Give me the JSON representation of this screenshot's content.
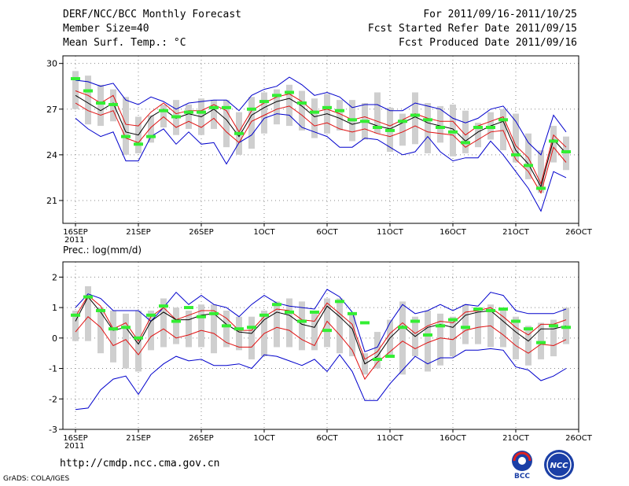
{
  "header": {
    "title": "DERF/NCC/BCC Monthly Forecast",
    "member_size": "Member Size=40",
    "variable": "Mean Surf. Temp.: °C",
    "period": "For 2011/09/16-2011/10/25",
    "refer_date": "Fcst Started Refer Date 2011/09/15",
    "produced_date": "Fcst Produced Date 2011/09/16"
  },
  "footer": {
    "url": "http://cmdp.ncc.cma.gov.cn",
    "credit": "GrADS: COLA/IGES",
    "logo_left": "BCC",
    "logo_right": "NCC"
  },
  "colors": {
    "box": "#cfcfcf",
    "median": "#000000",
    "inner_band": "#e01010",
    "outer_band": "#0000cc",
    "point": "#33ee33",
    "grid": "#888888"
  },
  "chart_data": [
    {
      "type": "line",
      "panel": "temperature",
      "title": "Mean Surf. Temp.: °C",
      "xlabel": "",
      "ylabel": "",
      "ylim": [
        19.5,
        30.5
      ],
      "yticks": [
        21,
        24,
        27,
        30
      ],
      "grid": true,
      "xlim": [
        0,
        39
      ],
      "xtick_labels": [
        "16SEP",
        "21SEP",
        "26SEP",
        "1OCT",
        "6OCT",
        "11OCT",
        "16OCT",
        "21OCT",
        "26OCT"
      ],
      "xtick_positions": [
        0,
        5,
        10,
        15,
        20,
        25,
        30,
        35,
        40
      ],
      "year_label": "2011",
      "x": [
        0,
        1,
        2,
        3,
        4,
        5,
        6,
        7,
        8,
        9,
        10,
        11,
        12,
        13,
        14,
        15,
        16,
        17,
        18,
        19,
        20,
        21,
        22,
        23,
        24,
        25,
        26,
        27,
        28,
        29,
        30,
        31,
        32,
        33,
        34,
        35,
        36,
        37,
        38,
        39
      ],
      "series": [
        {
          "name": "box_top",
          "values": [
            29.5,
            29.2,
            28.6,
            28.3,
            27.8,
            26.5,
            26.6,
            27.3,
            27.6,
            27.3,
            27.7,
            27.6,
            27.6,
            26.8,
            27.8,
            28.1,
            28.3,
            28.6,
            28.2,
            27.7,
            28.0,
            27.6,
            27.6,
            27.4,
            28.1,
            27.1,
            26.7,
            28.1,
            27.4,
            27.2,
            27.3,
            26.9,
            26.1,
            26.8,
            27.0,
            26.7,
            25.4,
            24.3,
            25.9,
            25.2
          ]
        },
        {
          "name": "box_bottom",
          "values": [
            27.0,
            26.0,
            25.9,
            26.2,
            24.0,
            24.1,
            24.8,
            25.8,
            25.3,
            25.7,
            25.3,
            25.7,
            24.5,
            24.0,
            24.4,
            25.4,
            26.0,
            25.9,
            25.6,
            25.1,
            25.4,
            25.6,
            24.9,
            25.0,
            25.4,
            24.2,
            24.6,
            24.7,
            24.1,
            24.8,
            23.9,
            24.1,
            24.5,
            25.0,
            24.3,
            23.5,
            22.4,
            21.5,
            23.5,
            23.0
          ]
        },
        {
          "name": "outer_upper",
          "values": [
            28.9,
            28.8,
            28.5,
            28.7,
            27.6,
            27.3,
            27.8,
            27.5,
            27.0,
            27.4,
            27.5,
            27.6,
            27.6,
            26.9,
            27.9,
            28.3,
            28.5,
            29.1,
            28.6,
            27.9,
            28.1,
            27.8,
            27.1,
            27.3,
            27.3,
            26.9,
            26.9,
            27.4,
            27.2,
            27.0,
            26.4,
            26.1,
            26.4,
            27.0,
            27.2,
            26.2,
            24.8,
            24.0,
            26.6,
            25.5
          ]
        },
        {
          "name": "inner_upper",
          "values": [
            28.2,
            27.9,
            27.4,
            27.9,
            26.0,
            25.9,
            26.8,
            27.4,
            26.7,
            26.9,
            26.9,
            27.3,
            26.9,
            25.5,
            26.9,
            27.4,
            27.8,
            28.0,
            27.5,
            26.8,
            27.0,
            26.7,
            26.3,
            26.5,
            26.2,
            25.9,
            26.3,
            26.7,
            26.4,
            26.2,
            26.2,
            25.3,
            25.9,
            26.2,
            26.5,
            24.6,
            23.8,
            22.1,
            25.3,
            24.5
          ]
        },
        {
          "name": "median",
          "values": [
            27.9,
            27.4,
            26.9,
            27.4,
            25.5,
            25.3,
            26.5,
            27.0,
            26.4,
            26.7,
            26.5,
            27.0,
            26.3,
            25.2,
            26.6,
            27.1,
            27.5,
            27.7,
            27.2,
            26.5,
            26.7,
            26.4,
            26.0,
            26.2,
            25.9,
            25.7,
            26.1,
            26.5,
            26.1,
            25.9,
            25.7,
            24.9,
            25.5,
            25.9,
            26.2,
            24.3,
            23.4,
            21.9,
            25.0,
            24.1
          ]
        },
        {
          "name": "inner_lower",
          "values": [
            27.4,
            26.9,
            26.6,
            26.9,
            25.1,
            24.8,
            25.8,
            26.5,
            25.8,
            26.2,
            25.8,
            26.4,
            25.5,
            24.8,
            26.2,
            26.6,
            27.0,
            27.2,
            26.6,
            25.9,
            26.1,
            25.7,
            25.5,
            25.7,
            25.4,
            25.2,
            25.5,
            25.9,
            25.5,
            25.4,
            25.3,
            24.5,
            25.0,
            25.5,
            25.6,
            23.7,
            22.9,
            21.5,
            24.5,
            23.5
          ]
        },
        {
          "name": "outer_lower",
          "values": [
            26.4,
            25.7,
            25.2,
            25.5,
            23.6,
            23.6,
            25.2,
            25.7,
            24.7,
            25.5,
            24.7,
            24.8,
            23.4,
            24.8,
            25.3,
            26.4,
            26.7,
            26.6,
            25.8,
            25.5,
            25.2,
            24.5,
            24.5,
            25.1,
            25.0,
            24.5,
            24.0,
            24.2,
            25.2,
            24.2,
            23.6,
            23.8,
            23.8,
            24.9,
            24.0,
            22.9,
            21.8,
            20.3,
            22.9,
            22.5
          ]
        },
        {
          "name": "point",
          "values": [
            29.0,
            28.2,
            27.4,
            27.3,
            25.2,
            24.7,
            25.2,
            26.9,
            26.5,
            26.8,
            26.8,
            27.1,
            27.1,
            25.4,
            27.0,
            27.5,
            27.9,
            28.1,
            27.4,
            26.8,
            27.1,
            26.9,
            26.3,
            26.2,
            25.8,
            25.6,
            26.2,
            26.6,
            26.3,
            25.8,
            25.5,
            24.8,
            25.8,
            25.8,
            26.3,
            24.0,
            23.3,
            21.8,
            24.9,
            24.2
          ]
        }
      ]
    },
    {
      "type": "line",
      "panel": "precipitation",
      "title": "Prec.: log(mm/d)",
      "xlabel": "",
      "ylabel": "",
      "ylim": [
        -3,
        2.5
      ],
      "yticks": [
        -3,
        -2,
        -1,
        0,
        1,
        2
      ],
      "grid": true,
      "xlim": [
        0,
        39
      ],
      "xtick_labels": [
        "16SEP",
        "21SEP",
        "26SEP",
        "1OCT",
        "6OCT",
        "11OCT",
        "16OCT",
        "21OCT",
        "26OCT"
      ],
      "xtick_positions": [
        0,
        5,
        10,
        15,
        20,
        25,
        30,
        35,
        40
      ],
      "year_label": "2011",
      "x": [
        0,
        1,
        2,
        3,
        4,
        5,
        6,
        7,
        8,
        9,
        10,
        11,
        12,
        13,
        14,
        15,
        16,
        17,
        18,
        19,
        20,
        21,
        22,
        23,
        24,
        25,
        26,
        27,
        28,
        29,
        30,
        31,
        32,
        33,
        34,
        35,
        36,
        37,
        38,
        39
      ],
      "series": [
        {
          "name": "box_top",
          "values": [
            0.9,
            1.7,
            1.0,
            0.9,
            0.8,
            0.9,
            0.9,
            1.3,
            1.0,
            0.9,
            1.1,
            1.1,
            0.9,
            0.7,
            0.7,
            0.9,
            1.2,
            1.3,
            1.2,
            0.8,
            1.3,
            1.3,
            0.8,
            -0.5,
            0.2,
            0.6,
            1.2,
            0.7,
            0.9,
            0.8,
            0.7,
            1.1,
            1.0,
            1.1,
            0.9,
            0.7,
            0.4,
            0.5,
            0.6,
            1.0
          ]
        },
        {
          "name": "box_bottom",
          "values": [
            -0.1,
            -0.1,
            -0.5,
            -0.8,
            -1.0,
            -1.1,
            -0.4,
            -0.3,
            -0.2,
            -0.3,
            -0.3,
            -0.5,
            -0.3,
            -0.4,
            -0.7,
            -0.6,
            -0.3,
            -0.3,
            -0.4,
            -0.4,
            -0.3,
            -0.5,
            -0.6,
            -1.2,
            -1.0,
            -0.6,
            -1.2,
            -0.6,
            -1.1,
            -0.9,
            -0.6,
            -0.2,
            -0.2,
            -0.3,
            -0.3,
            -0.7,
            -0.9,
            -0.7,
            -0.6,
            -0.2
          ]
        },
        {
          "name": "outer_upper",
          "values": [
            1.0,
            1.45,
            1.3,
            0.9,
            0.9,
            0.9,
            0.55,
            1.0,
            1.5,
            1.1,
            1.4,
            1.1,
            1.0,
            0.7,
            1.1,
            1.4,
            1.15,
            1.05,
            1.0,
            0.95,
            1.6,
            1.35,
            0.85,
            -0.45,
            -0.3,
            0.5,
            1.1,
            0.8,
            0.9,
            1.1,
            0.9,
            1.1,
            1.05,
            1.5,
            1.4,
            0.9,
            0.8,
            0.8,
            0.8,
            0.95
          ]
        },
        {
          "name": "inner_upper",
          "values": [
            0.7,
            1.4,
            1.05,
            0.3,
            0.5,
            -0.1,
            0.7,
            1.0,
            0.6,
            0.75,
            0.9,
            0.9,
            0.65,
            0.25,
            0.25,
            0.7,
            0.95,
            0.9,
            0.6,
            0.55,
            1.15,
            0.8,
            0.45,
            -0.7,
            -0.45,
            0.15,
            0.5,
            0.15,
            0.4,
            0.55,
            0.5,
            0.85,
            0.9,
            1.0,
            0.7,
            0.35,
            0.1,
            0.45,
            0.45,
            0.6
          ]
        },
        {
          "name": "median",
          "values": [
            0.55,
            1.35,
            0.85,
            0.25,
            0.35,
            -0.2,
            0.55,
            0.85,
            0.6,
            0.6,
            0.75,
            0.8,
            0.45,
            0.2,
            0.15,
            0.6,
            0.85,
            0.75,
            0.45,
            0.35,
            1.05,
            0.7,
            0.3,
            -0.85,
            -0.6,
            0.0,
            0.4,
            0.05,
            0.35,
            0.45,
            0.35,
            0.75,
            0.85,
            0.9,
            0.55,
            0.2,
            -0.1,
            0.3,
            0.3,
            0.4
          ]
        },
        {
          "name": "inner_lower",
          "values": [
            0.2,
            0.7,
            0.35,
            -0.25,
            -0.05,
            -0.55,
            0.05,
            0.3,
            0.0,
            0.1,
            0.25,
            0.15,
            -0.15,
            -0.3,
            -0.3,
            0.15,
            0.35,
            0.25,
            -0.05,
            -0.25,
            0.55,
            0.1,
            -0.4,
            -1.35,
            -0.8,
            -0.45,
            -0.1,
            -0.35,
            -0.15,
            0.0,
            -0.05,
            0.25,
            0.35,
            0.4,
            0.1,
            -0.25,
            -0.5,
            -0.2,
            -0.25,
            -0.05
          ]
        },
        {
          "name": "outer_lower",
          "values": [
            -2.35,
            -2.3,
            -1.7,
            -1.35,
            -1.25,
            -1.85,
            -1.2,
            -0.85,
            -0.6,
            -0.75,
            -0.7,
            -0.9,
            -0.9,
            -0.85,
            -1.0,
            -0.55,
            -0.6,
            -0.75,
            -0.9,
            -0.7,
            -1.1,
            -0.55,
            -1.1,
            -2.05,
            -2.05,
            -1.5,
            -1.05,
            -0.6,
            -0.85,
            -0.65,
            -0.65,
            -0.4,
            -0.4,
            -0.35,
            -0.4,
            -0.95,
            -1.05,
            -1.4,
            -1.25,
            -1.0
          ]
        },
        {
          "name": "point",
          "values": [
            0.75,
            1.35,
            0.9,
            0.3,
            0.35,
            0.0,
            0.75,
            1.05,
            0.55,
            1.0,
            0.7,
            0.8,
            0.4,
            0.3,
            0.35,
            0.75,
            1.1,
            0.85,
            0.55,
            0.85,
            0.25,
            1.2,
            0.8,
            0.5,
            -0.7,
            -0.6,
            0.35,
            0.55,
            0.1,
            0.4,
            0.6,
            0.35,
            0.95,
            0.9,
            0.95,
            0.55,
            0.3,
            -0.15,
            0.4,
            0.35
          ]
        }
      ]
    }
  ]
}
